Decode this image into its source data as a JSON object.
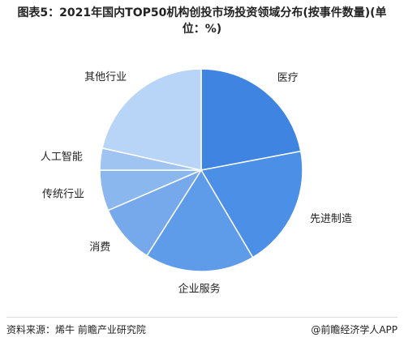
{
  "chart_data": {
    "type": "pie",
    "title": "图表5：2021年国内TOP50机构创投市场投资领域分布(按事件数量)(单位：%)",
    "categories": [
      "医疗",
      "先进制造",
      "企业服务",
      "消费",
      "传统行业",
      "人工智能",
      "其他行业"
    ],
    "values": [
      22,
      19.5,
      17.5,
      9.5,
      6.5,
      3.5,
      21.5
    ],
    "colors": [
      "#3f84e0",
      "#4b8fe6",
      "#5e9be9",
      "#75a9ec",
      "#8bb7ef",
      "#a0c4f2",
      "#b8d4f6"
    ],
    "source": "资料来源：烯牛 前瞻产业研究院",
    "brand": "@前瞻经济学人APP"
  }
}
